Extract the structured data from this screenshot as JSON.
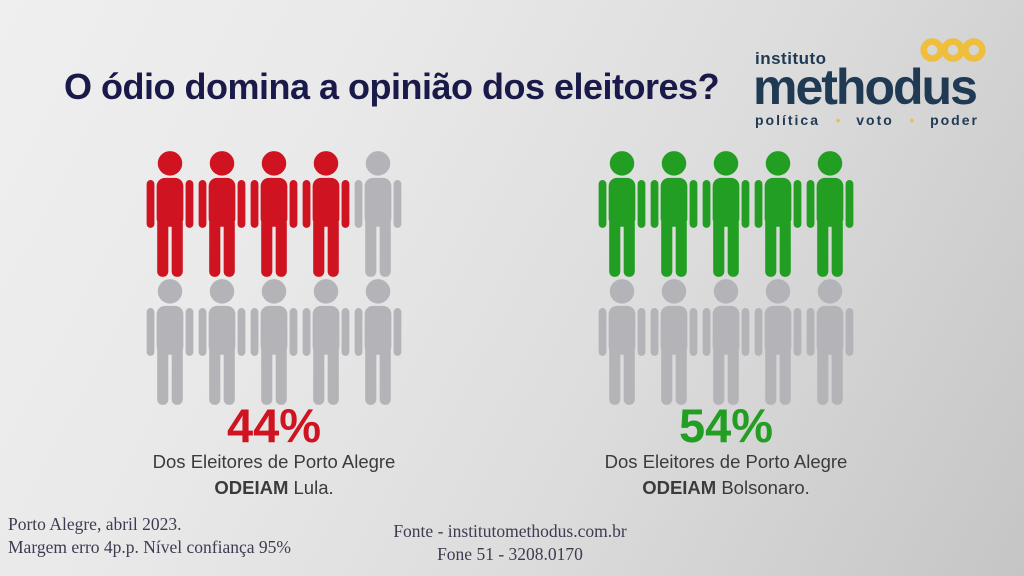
{
  "header": {
    "title": "O ódio domina a opinião dos eleitores?"
  },
  "logo": {
    "top_word": "instituto",
    "name": "methodus",
    "tagline_words": [
      "política",
      "voto",
      "poder"
    ],
    "icon": "triple-loop-chain-icon"
  },
  "colors": {
    "title_navy": "#1a1a4a",
    "logo_navy": "#203a54",
    "logo_gold": "#efbe3d",
    "hate_lula_red": "#d01320",
    "hate_bolsonaro_green": "#229e23",
    "empty_person_gray": "#b4b4b8",
    "caption_gray": "#3b3b3b",
    "footer_slate": "#3c3c52",
    "background_light": "#efefef",
    "background_dark": "#c5c5c5"
  },
  "chart_data": {
    "type": "pictogram",
    "title": "O ódio domina a opinião dos eleitores?",
    "units_per_group": 10,
    "unit_value_percent": 10,
    "empty_color": "#b4b4b8",
    "groups": [
      {
        "name": "Lula",
        "value_percent": 44,
        "label": "44%",
        "filled_units": 4,
        "fill_color": "#d01320",
        "caption_line1": "Dos Eleitores de Porto Alegre",
        "caption_bold": "ODEIAM",
        "caption_rest": "Lula."
      },
      {
        "name": "Bolsonaro",
        "value_percent": 54,
        "label": "54%",
        "filled_units": 5,
        "fill_color": "#229e23",
        "caption_line1": "Dos Eleitores de Porto Alegre",
        "caption_bold": "ODEIAM",
        "caption_rest": "Bolsonaro."
      }
    ]
  },
  "footer": {
    "left_line1": "Porto Alegre, abril 2023.",
    "left_line2": "Margem erro 4p.p. Nível confiança 95%",
    "center_line1": "Fonte - institutomethodus.com.br",
    "center_line2": "Fone 51 - 3208.0170"
  }
}
